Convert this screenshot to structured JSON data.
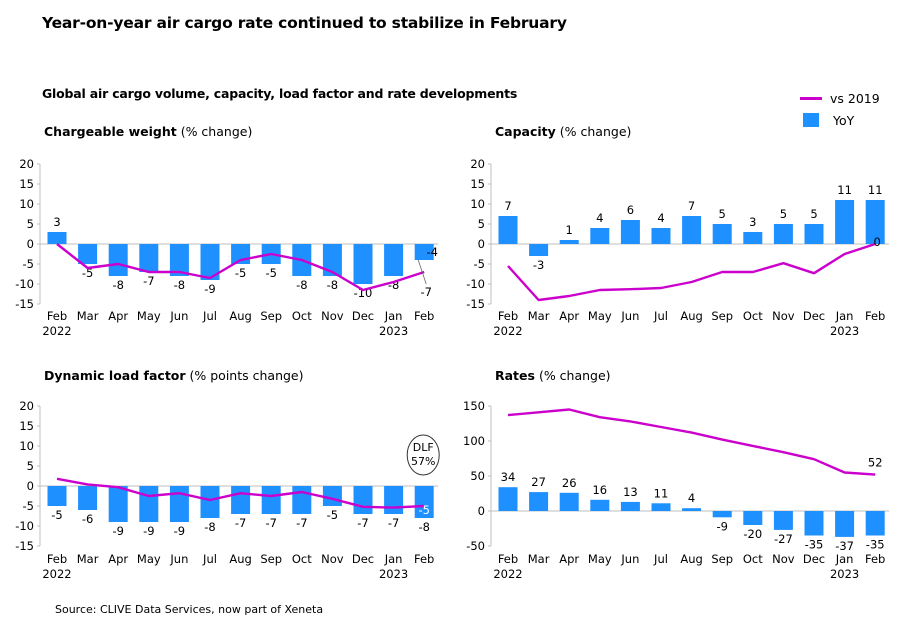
{
  "title": "Year-on-year air cargo rate continued to stabilize in February",
  "subtitle": "Global air cargo volume, capacity, load factor and rate developments",
  "source": "Source: CLIVE Data Services, now part of Xeneta",
  "legend": {
    "line_label": "vs 2019",
    "bar_label": "YoY"
  },
  "colors": {
    "bar": "#1e90ff",
    "line": "#cc00cc",
    "axis": "#bfbfbf"
  },
  "x_ticks": [
    "Feb",
    "Mar",
    "Apr",
    "May",
    "Jun",
    "Jul",
    "Aug",
    "Sep",
    "Oct",
    "Nov",
    "Dec",
    "Jan",
    "Feb"
  ],
  "x_years": [
    "2022",
    "2023"
  ],
  "chart_data": [
    {
      "type": "bar",
      "title_bold": "Chargeable weight",
      "title_rest": " (% change)",
      "categories": [
        "Feb 2022",
        "Mar",
        "Apr",
        "May",
        "Jun",
        "Jul",
        "Aug",
        "Sep",
        "Oct",
        "Nov",
        "Dec",
        "Jan 2023",
        "Feb"
      ],
      "ylim": [
        -15,
        20
      ],
      "yticks": [
        20,
        15,
        10,
        5,
        0,
        -5,
        -10,
        -15
      ],
      "series": [
        {
          "name": "YoY",
          "type": "bar",
          "values": [
            3,
            -5,
            -8,
            -7,
            -8,
            -9,
            -5,
            -5,
            -8,
            -8,
            -10,
            -8,
            -4
          ]
        },
        {
          "name": "vs 2019",
          "type": "line",
          "values": [
            0,
            -6,
            -5,
            -7,
            -7,
            -8.5,
            -4,
            -2.5,
            -4,
            -7,
            -11.5,
            -9.5,
            -7
          ]
        }
      ],
      "bar_labels": [
        "3",
        "-5",
        "-8",
        "-7",
        "-8",
        "-9",
        "-5",
        "-5",
        "-8",
        "-8",
        "-10",
        "-8",
        "-4"
      ],
      "line_end_label": "-7"
    },
    {
      "type": "bar",
      "title_bold": "Capacity",
      "title_rest": " (% change)",
      "categories": [
        "Feb 2022",
        "Mar",
        "Apr",
        "May",
        "Jun",
        "Jul",
        "Aug",
        "Sep",
        "Oct",
        "Nov",
        "Dec",
        "Jan 2023",
        "Feb"
      ],
      "ylim": [
        -15,
        20
      ],
      "yticks": [
        20,
        15,
        10,
        5,
        0,
        -5,
        -10,
        -15
      ],
      "series": [
        {
          "name": "YoY",
          "type": "bar",
          "values": [
            7,
            -3,
            1,
            4,
            6,
            4,
            7,
            5,
            3,
            5,
            5,
            11,
            11
          ]
        },
        {
          "name": "vs 2019",
          "type": "line",
          "values": [
            -5.5,
            -14,
            -13,
            -11.5,
            -11.3,
            -11,
            -9.5,
            -7,
            -7,
            -4.8,
            -7.3,
            -2.5,
            0
          ]
        }
      ],
      "bar_labels": [
        "7",
        "-3",
        "1",
        "4",
        "6",
        "4",
        "7",
        "5",
        "3",
        "5",
        "5",
        "11",
        "11"
      ],
      "line_end_label": "0"
    },
    {
      "type": "bar",
      "title_bold": "Dynamic load factor",
      "title_rest": " (% points change)",
      "categories": [
        "Feb 2022",
        "Mar",
        "Apr",
        "May",
        "Jun",
        "Jul",
        "Aug",
        "Sep",
        "Oct",
        "Nov",
        "Dec",
        "Jan 2023",
        "Feb"
      ],
      "ylim": [
        -15,
        20
      ],
      "yticks": [
        20,
        15,
        10,
        5,
        0,
        -5,
        -10,
        -15
      ],
      "series": [
        {
          "name": "YoY",
          "type": "bar",
          "values": [
            -5,
            -6,
            -9,
            -9,
            -9,
            -8,
            -7,
            -7,
            -7,
            -5,
            -7,
            -7,
            -8
          ]
        },
        {
          "name": "vs 2019",
          "type": "line",
          "values": [
            1.8,
            0.4,
            -0.3,
            -2.5,
            -1.8,
            -3.5,
            -1.8,
            -2.5,
            -1.5,
            -3.2,
            -5.2,
            -5.4,
            -5
          ]
        }
      ],
      "bar_labels": [
        "-5",
        "-6",
        "-9",
        "-9",
        "-9",
        "-8",
        "-7",
        "-7",
        "-7",
        "-5",
        "-7",
        "-7",
        "-8"
      ],
      "line_end_label": "-5",
      "callout": [
        "DLF",
        "57%"
      ]
    },
    {
      "type": "bar",
      "title_bold": "Rates",
      "title_rest": " (% change)",
      "categories": [
        "Feb 2022",
        "Mar",
        "Apr",
        "May",
        "Jun",
        "Jul",
        "Aug",
        "Sep",
        "Oct",
        "Nov",
        "Dec",
        "Jan 2023",
        "Feb"
      ],
      "ylim": [
        -50,
        150
      ],
      "yticks": [
        150,
        100,
        50,
        0,
        -50
      ],
      "series": [
        {
          "name": "YoY",
          "type": "bar",
          "values": [
            34,
            27,
            26,
            16,
            13,
            11,
            4,
            -9,
            -20,
            -27,
            -35,
            -37,
            -35
          ]
        },
        {
          "name": "vs 2019",
          "type": "line",
          "values": [
            137,
            141,
            145,
            134,
            128,
            120,
            112,
            102,
            93,
            84,
            74,
            55,
            52
          ]
        }
      ],
      "bar_labels": [
        "34",
        "27",
        "26",
        "16",
        "13",
        "11",
        "4",
        "-9",
        "-20",
        "-27",
        "-35",
        "-37",
        "-35"
      ],
      "line_end_label": "52"
    }
  ]
}
